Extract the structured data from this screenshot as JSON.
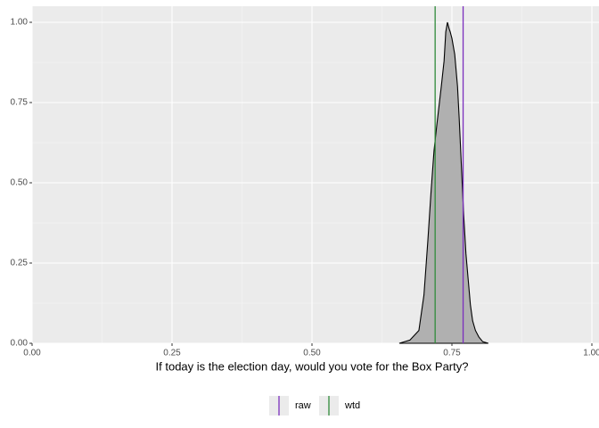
{
  "chart_data": {
    "type": "area",
    "x_label": "If today is the election day, would you vote for the Box Party?",
    "x": [
      0.656,
      0.675,
      0.691,
      0.7,
      0.707,
      0.713,
      0.718,
      0.723,
      0.731,
      0.736,
      0.739,
      0.742,
      0.745,
      0.747,
      0.75,
      0.755,
      0.76,
      0.763,
      0.767,
      0.771,
      0.775,
      0.779,
      0.783,
      0.787,
      0.792,
      0.798,
      0.805,
      0.815
    ],
    "values": [
      0,
      0.01,
      0.04,
      0.15,
      0.32,
      0.48,
      0.6,
      0.68,
      0.8,
      0.88,
      0.97,
      1.0,
      0.98,
      0.97,
      0.95,
      0.9,
      0.8,
      0.7,
      0.55,
      0.4,
      0.28,
      0.2,
      0.12,
      0.07,
      0.04,
      0.02,
      0.005,
      0
    ],
    "color": "#b0b0b0",
    "vlines": [
      {
        "name": "raw",
        "color": "#7b2fbe",
        "value": 0.77
      },
      {
        "name": "wtd",
        "color": "#2f8a3a",
        "value": 0.72
      }
    ],
    "xlim": [
      0,
      1
    ],
    "ylim": [
      0,
      1.05
    ],
    "xticks": [
      {
        "value": 0,
        "label": "0.00"
      },
      {
        "value": 0.25,
        "label": "0.25"
      },
      {
        "value": 0.5,
        "label": "0.50"
      },
      {
        "value": 0.75,
        "label": "0.75"
      },
      {
        "value": 1,
        "label": "1.00"
      }
    ],
    "yticks": [
      {
        "value": 0,
        "label": "0.00"
      },
      {
        "value": 0.25,
        "label": "0.25"
      },
      {
        "value": 0.5,
        "label": "0.50"
      },
      {
        "value": 0.75,
        "label": "0.75"
      },
      {
        "value": 1,
        "label": "1.00"
      }
    ],
    "grid": true,
    "legend": "bottom"
  }
}
